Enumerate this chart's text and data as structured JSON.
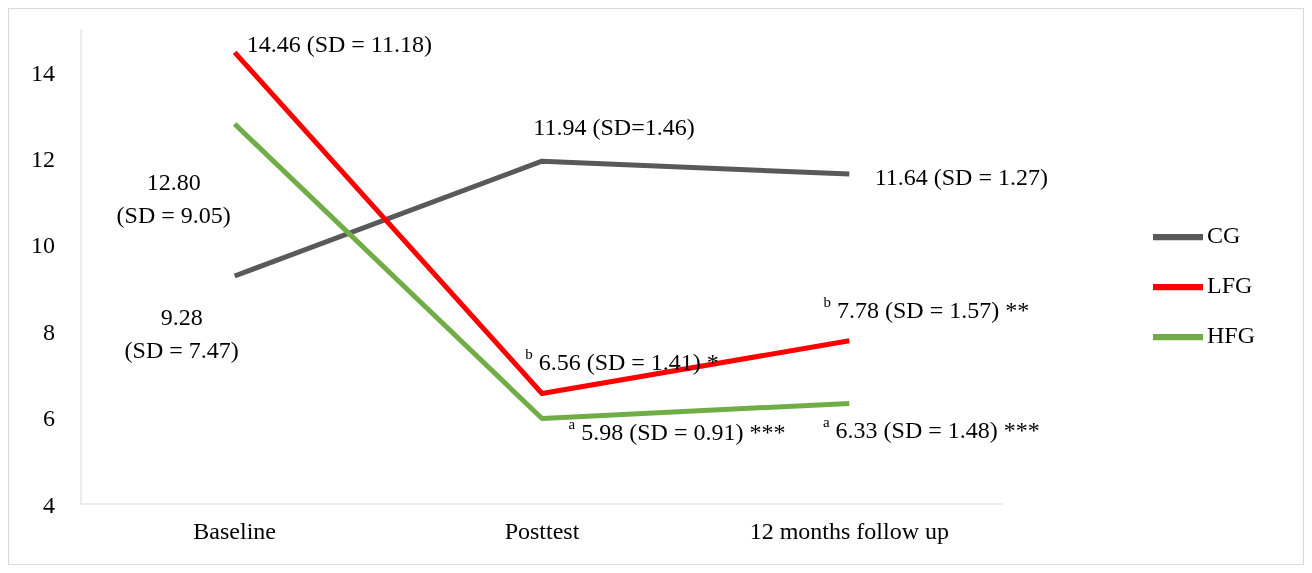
{
  "chart_data": {
    "type": "line",
    "categories": [
      "Baseline",
      "Posttest",
      "12 months follow up"
    ],
    "series": [
      {
        "name": "CG",
        "color": "#595959",
        "values": [
          9.28,
          11.94,
          11.64
        ],
        "value_labels": [
          "9.28\n(SD = 7.47)",
          "11.94 (SD=1.46)",
          "11.64 (SD = 1.27)"
        ]
      },
      {
        "name": "LFG",
        "color": "#ff0000",
        "values": [
          14.46,
          6.56,
          7.78
        ],
        "value_labels": [
          "14.46 (SD = 11.18)",
          "$^{b}$ 6.56 (SD = 1.41) *",
          "$^{b}$ 7.78 (SD = 1.57) **"
        ]
      },
      {
        "name": "HFG",
        "color": "#70ad47",
        "values": [
          12.8,
          5.98,
          6.33
        ],
        "value_labels": [
          "12.80\n(SD = 9.05)",
          "$^{a}$ 5.98 (SD = 0.91) ***",
          "$^{a}$ 6.33 (SD = 1.48) ***"
        ]
      }
    ],
    "ylim": [
      4,
      15
    ],
    "yticks": [
      4,
      6,
      8,
      10,
      12,
      14
    ],
    "grid": false,
    "legend": "right",
    "marker": "none",
    "line_style": "solid"
  }
}
